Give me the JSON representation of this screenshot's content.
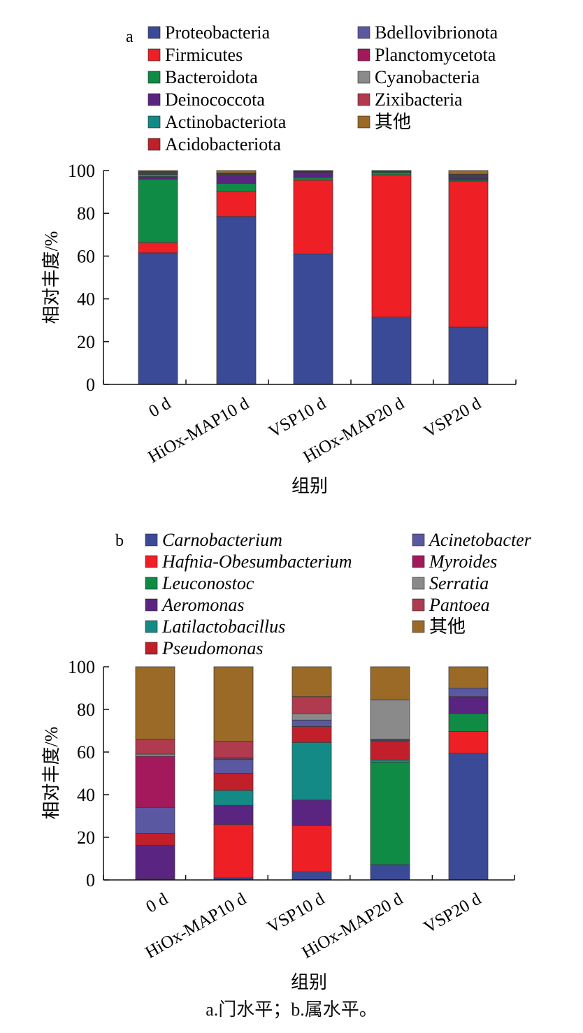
{
  "caption": "a.门水平；b.属水平。",
  "chart_data": [
    {
      "type": "bar",
      "stacked": true,
      "panel_label": "a",
      "italic_legend": false,
      "categories": [
        "0 d",
        "HiOx-MAP10 d",
        "VSP10 d",
        "HiOx-MAP20 d",
        "VSP20 d"
      ],
      "xlabel": "组别",
      "ylabel": "相对丰度/%",
      "ylim": [
        0,
        100
      ],
      "yticks": [
        0,
        20,
        40,
        60,
        80,
        100
      ],
      "legend_columns": [
        6,
        4
      ],
      "series": [
        {
          "name": "Proteobacteria",
          "color": "#3a4a96",
          "values": [
            61.5,
            78.5,
            61.0,
            31.5,
            26.8
          ]
        },
        {
          "name": "Firmicutes",
          "color": "#ee1f25",
          "values": [
            4.8,
            11.5,
            34.5,
            66.5,
            68.3
          ]
        },
        {
          "name": "Bacteroidota",
          "color": "#0f8b45",
          "values": [
            29.7,
            4.0,
            1.2,
            1.2,
            0.5
          ]
        },
        {
          "name": "Deinococcota",
          "color": "#5a2580",
          "values": [
            1.2,
            4.0,
            2.5,
            0.4,
            0.8
          ]
        },
        {
          "name": "Actinobacteriota",
          "color": "#148a86",
          "values": [
            1.0,
            0.3,
            0.1,
            0.1,
            0.2
          ]
        },
        {
          "name": "Acidobacteriota",
          "color": "#c11f2a",
          "values": [
            0.2,
            0.1,
            0.1,
            0.1,
            0.2
          ]
        },
        {
          "name": "Bdellovibrionota",
          "color": "#5a58a0",
          "values": [
            0.4,
            0.1,
            0.1,
            0.1,
            0.5
          ]
        },
        {
          "name": "Planctomycetota",
          "color": "#a3195b",
          "values": [
            0.2,
            0.1,
            0.1,
            0.1,
            0.4
          ]
        },
        {
          "name": "Cyanobacteria",
          "color": "#8a8a8a",
          "values": [
            0.3,
            0.1,
            0.1,
            0.0,
            0.3
          ]
        },
        {
          "name": "Zixibacteria",
          "color": "#b03a4e",
          "values": [
            0.2,
            0.1,
            0.1,
            0.0,
            0.3
          ]
        },
        {
          "name": "其他",
          "color": "#9b6a27",
          "values": [
            0.5,
            1.2,
            0.2,
            0.0,
            1.7
          ]
        }
      ]
    },
    {
      "type": "bar",
      "stacked": true,
      "panel_label": "b",
      "italic_legend": true,
      "categories": [
        "0 d",
        "HiOx-MAP10 d",
        "VSP10 d",
        "HiOx-MAP20 d",
        "VSP20 d"
      ],
      "xlabel": "组别",
      "ylabel": "相对丰度/%",
      "ylim": [
        0,
        100
      ],
      "yticks": [
        0,
        20,
        40,
        60,
        80,
        100
      ],
      "legend_columns": [
        6,
        5
      ],
      "series": [
        {
          "name": "Carnobacterium",
          "color": "#3a4a96",
          "values": [
            0.5,
            1.0,
            3.8,
            7.2,
            59.5
          ]
        },
        {
          "name": "Hafnia-Obesumbacterium",
          "color": "#ee1f25",
          "values": [
            0.0,
            25.0,
            21.7,
            0.0,
            10.2
          ]
        },
        {
          "name": "Leuconostoc",
          "color": "#0f8b45",
          "values": [
            0.0,
            0.0,
            0.0,
            48.0,
            8.3
          ]
        },
        {
          "name": "Aeromonas",
          "color": "#5a2580",
          "values": [
            15.8,
            9.0,
            12.0,
            0.0,
            8.0
          ]
        },
        {
          "name": "Latilactobacillus",
          "color": "#148a86",
          "values": [
            0.0,
            7.0,
            27.0,
            1.0,
            0.0
          ]
        },
        {
          "name": "Pseudomonas",
          "color": "#c11f2a",
          "values": [
            5.5,
            8.0,
            7.5,
            8.8,
            0.0
          ]
        },
        {
          "name": "Acinetobacter",
          "color": "#5a58a0",
          "values": [
            12.2,
            6.5,
            3.0,
            0.5,
            4.0
          ]
        },
        {
          "name": "Myroides",
          "color": "#a3195b",
          "values": [
            24.0,
            0.5,
            0.0,
            0.5,
            0.0
          ]
        },
        {
          "name": "Serratia",
          "color": "#8a8a8a",
          "values": [
            1.0,
            0.5,
            3.0,
            18.5,
            0.0
          ]
        },
        {
          "name": "Pantoea",
          "color": "#b03a4e",
          "values": [
            7.0,
            7.5,
            8.0,
            0.0,
            0.0
          ]
        },
        {
          "name": "其他",
          "color": "#9b6a27",
          "values": [
            34.0,
            35.0,
            14.0,
            15.5,
            10.0
          ]
        }
      ]
    }
  ]
}
